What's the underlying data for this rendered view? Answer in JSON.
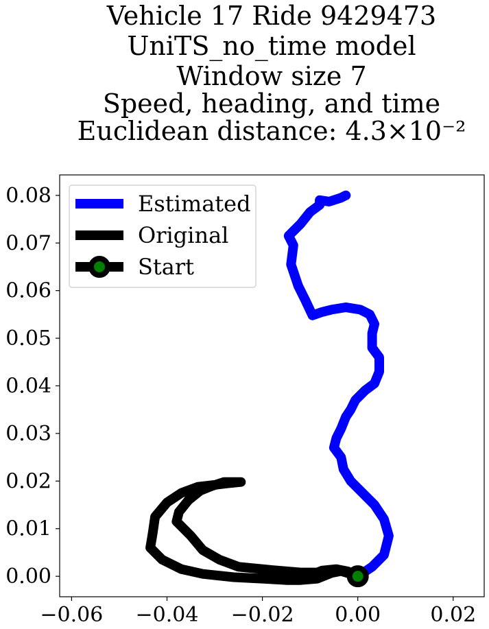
{
  "chart_data": {
    "type": "line",
    "title_lines": [
      "Vehicle 17 Ride 9429473",
      "UniTS_no_time model",
      "Window size 7",
      "Speed, heading, and time",
      "Euclidean distance: 4.3×10⁻²"
    ],
    "xlabel": "",
    "ylabel": "",
    "xlim": [
      -0.0625,
      0.0265
    ],
    "ylim": [
      -0.0043,
      0.0843
    ],
    "xticks": [
      -0.06,
      -0.04,
      -0.02,
      0.0,
      0.02
    ],
    "xtick_labels": [
      "−0.06",
      "−0.04",
      "−0.02",
      "0.00",
      "0.02"
    ],
    "yticks": [
      0.0,
      0.01,
      0.02,
      0.03,
      0.04,
      0.05,
      0.06,
      0.07,
      0.08
    ],
    "ytick_labels": [
      "0.00",
      "0.01",
      "0.02",
      "0.03",
      "0.04",
      "0.05",
      "0.06",
      "0.07",
      "0.08"
    ],
    "grid": false,
    "legend_position": "top-left",
    "series": [
      {
        "name": "Estimated",
        "color": "#0000ff",
        "points": [
          [
            0.0,
            0.0
          ],
          [
            0.003,
            0.002
          ],
          [
            0.0055,
            0.0045
          ],
          [
            0.0065,
            0.0085
          ],
          [
            0.0055,
            0.012
          ],
          [
            0.0035,
            0.015
          ],
          [
            0.0005,
            0.018
          ],
          [
            -0.0015,
            0.02
          ],
          [
            -0.003,
            0.0225
          ],
          [
            -0.0035,
            0.025
          ],
          [
            -0.005,
            0.027
          ],
          [
            -0.0045,
            0.029
          ],
          [
            -0.0035,
            0.031
          ],
          [
            -0.0025,
            0.0335
          ],
          [
            -0.0015,
            0.035
          ],
          [
            -0.0005,
            0.037
          ],
          [
            0.0015,
            0.039
          ],
          [
            0.0035,
            0.0405
          ],
          [
            0.0045,
            0.043
          ],
          [
            0.0045,
            0.046
          ],
          [
            0.003,
            0.048
          ],
          [
            0.003,
            0.051
          ],
          [
            0.0035,
            0.053
          ],
          [
            0.0025,
            0.055
          ],
          [
            0.0005,
            0.056
          ],
          [
            -0.0025,
            0.0565
          ],
          [
            -0.0055,
            0.056
          ],
          [
            -0.0075,
            0.0555
          ],
          [
            -0.0095,
            0.0548
          ],
          [
            -0.011,
            0.058
          ],
          [
            -0.0125,
            0.061
          ],
          [
            -0.014,
            0.0655
          ],
          [
            -0.0135,
            0.0695
          ],
          [
            -0.0145,
            0.0715
          ],
          [
            -0.012,
            0.074
          ],
          [
            -0.01,
            0.0765
          ],
          [
            -0.008,
            0.078
          ],
          [
            -0.008,
            0.079
          ],
          [
            -0.006,
            0.0787
          ],
          [
            -0.0035,
            0.0795
          ],
          [
            -0.0025,
            0.08
          ]
        ]
      },
      {
        "name": "Original",
        "color": "#000000",
        "points": [
          [
            0.0,
            0.0
          ],
          [
            -0.002,
            0.001
          ],
          [
            -0.0045,
            0.0015
          ],
          [
            -0.0075,
            0.0012
          ],
          [
            -0.0085,
            0.0008
          ],
          [
            -0.012,
            0.0008
          ],
          [
            -0.018,
            0.0013
          ],
          [
            -0.025,
            0.002
          ],
          [
            -0.029,
            0.0035
          ],
          [
            -0.0325,
            0.0055
          ],
          [
            -0.035,
            0.0085
          ],
          [
            -0.038,
            0.0115
          ],
          [
            -0.0375,
            0.0135
          ],
          [
            -0.0355,
            0.016
          ],
          [
            -0.033,
            0.018
          ],
          [
            -0.0305,
            0.019
          ],
          [
            -0.028,
            0.0198
          ],
          [
            -0.0245,
            0.0198
          ],
          [
            -0.0275,
            0.0195
          ],
          [
            -0.03,
            0.0192
          ],
          [
            -0.0335,
            0.0188
          ],
          [
            -0.037,
            0.0175
          ],
          [
            -0.04,
            0.0155
          ],
          [
            -0.0425,
            0.0125
          ],
          [
            -0.043,
            0.009
          ],
          [
            -0.0435,
            0.006
          ],
          [
            -0.041,
            0.0035
          ],
          [
            -0.037,
            0.0015
          ],
          [
            -0.0325,
            0.0005
          ],
          [
            -0.026,
            -0.0002
          ],
          [
            -0.02,
            -0.0005
          ],
          [
            -0.015,
            -0.0008
          ],
          [
            -0.012,
            -0.0008
          ],
          [
            -0.0085,
            -0.0005
          ],
          [
            -0.0055,
            0.0007
          ],
          [
            -0.0035,
            0.0011
          ],
          [
            -0.0015,
            0.0005
          ],
          [
            0.0,
            0.0
          ]
        ]
      }
    ],
    "markers": [
      {
        "name": "Start",
        "x": 0.0,
        "y": 0.0,
        "edge_color": "#000000",
        "face_color": "#008000"
      }
    ],
    "legend": [
      {
        "label": "Estimated",
        "color": "#0000ff",
        "marker": false
      },
      {
        "label": "Original",
        "color": "#000000",
        "marker": false
      },
      {
        "label": "Start",
        "color": "#000000",
        "marker": true,
        "marker_face": "#008000"
      }
    ]
  }
}
